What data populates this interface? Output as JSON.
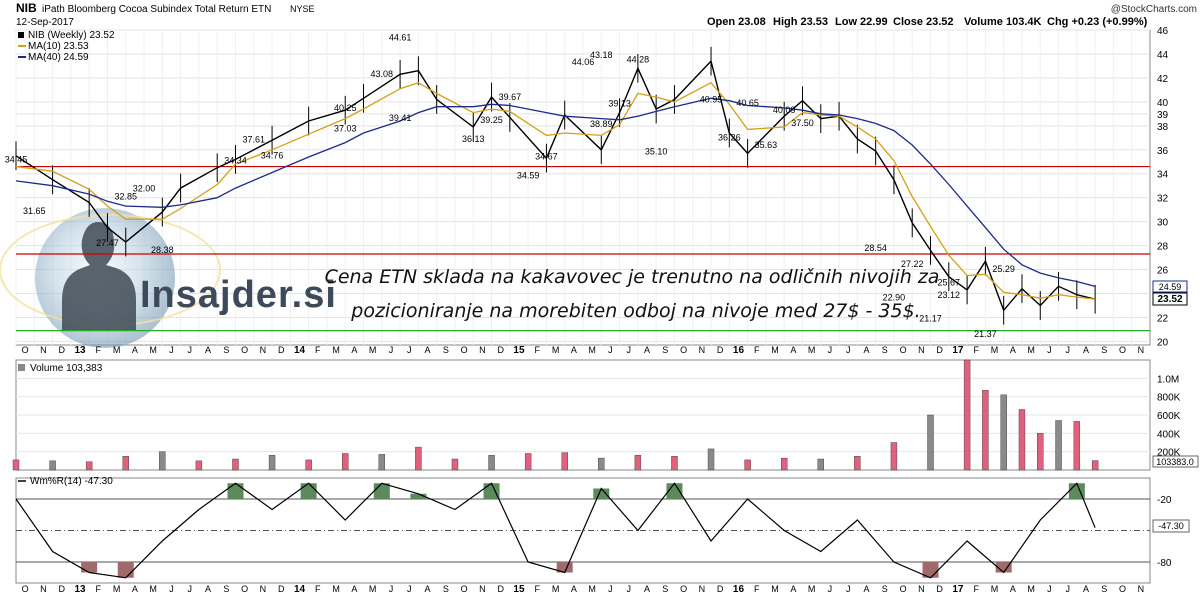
{
  "header": {
    "symbol": "NIB",
    "name": "iPath Bloomberg Cocoa Subindex Total Return ETN",
    "exchange": "NYSE",
    "date": "12-Sep-2017",
    "open": "Open 23.08",
    "high": "High 23.53",
    "low": "Low 22.99",
    "close": "Close 23.52",
    "volume": "Volume 103.4K",
    "change": "Chg +0.23 (+0.99%)",
    "watermark": "@StockCharts.com"
  },
  "logo_text": "Insajder.si",
  "annotation": {
    "line1": "Cena ETN sklada na kakavovec je trenutno na odličnih nivojih za",
    "line2": "pozicioniranje na  morebiten odboj na nivoje med 27$ - 35$."
  },
  "legend": {
    "price": "NIB (Weekly) 23.52",
    "ma10": "MA(10) 23.53",
    "ma40": "MA(40) 24.59",
    "volume": "Volume 103,383",
    "willr": "Wm%R(14) -47.30"
  },
  "price_axis": {
    "ticks": [
      "46",
      "44",
      "42",
      "40",
      "39",
      "38",
      "36",
      "34",
      "32",
      "30",
      "28",
      "26",
      "24",
      "22",
      "20"
    ],
    "ma40_tag": "24.59",
    "close_tag": "23.52"
  },
  "volume_axis": {
    "ticks": [
      "1.0M",
      "800K",
      "600K",
      "400K",
      "200K"
    ],
    "tag": "103383.0"
  },
  "willr_axis": {
    "ticks": [
      "-20",
      "-80"
    ],
    "tag": "-47.30"
  },
  "time_axis": {
    "labels": [
      "O",
      "N",
      "D",
      "13",
      "F",
      "M",
      "A",
      "M",
      "J",
      "J",
      "A",
      "S",
      "O",
      "N",
      "D",
      "14",
      "F",
      "M",
      "A",
      "M",
      "J",
      "J",
      "A",
      "S",
      "O",
      "N",
      "D",
      "15",
      "F",
      "M",
      "A",
      "M",
      "J",
      "J",
      "A",
      "S",
      "O",
      "N",
      "D",
      "16",
      "F",
      "M",
      "A",
      "M",
      "J",
      "J",
      "A",
      "S",
      "O",
      "N",
      "D",
      "17",
      "F",
      "M",
      "A",
      "M",
      "J",
      "J",
      "A",
      "S",
      "O",
      "N"
    ]
  },
  "colors": {
    "ma10": "#d4a017",
    "ma40": "#1c2a8c",
    "resistance_line": "#cc0000",
    "support_line": "#22aa22",
    "volume_up": "#e0607e",
    "volume_down": "#8a8a8a",
    "willr_overbought_fill": "#5d8a5d",
    "willr_oversold_fill": "#a06a6a"
  },
  "chart_data": [
    {
      "type": "line",
      "title": "NIB iPath Bloomberg Cocoa Subindex Total Return ETN NYSE",
      "x": [
        "2012-10",
        "2012-12",
        "2013-02",
        "2013-03",
        "2013-04",
        "2013-06",
        "2013-07",
        "2013-09",
        "2013-10",
        "2013-12",
        "2014-02",
        "2014-04",
        "2014-05",
        "2014-07",
        "2014-08",
        "2014-09",
        "2014-11",
        "2014-12",
        "2015-01",
        "2015-03",
        "2015-04",
        "2015-06",
        "2015-07",
        "2015-08",
        "2015-09",
        "2015-10",
        "2015-12",
        "2016-01",
        "2016-02",
        "2016-04",
        "2016-05",
        "2016-06",
        "2016-07",
        "2016-08",
        "2016-09",
        "2016-10",
        "2016-11",
        "2016-12",
        "2017-01",
        "2017-02",
        "2017-03",
        "2017-04",
        "2017-05",
        "2017-06",
        "2017-07",
        "2017-08",
        "2017-09"
      ],
      "series": [
        {
          "name": "NIB (Weekly)",
          "values": [
            35.5,
            33.5,
            31.6,
            29.5,
            28.3,
            30.8,
            32.8,
            34.5,
            35.2,
            36.8,
            38.4,
            39.3,
            40.3,
            42.3,
            42.6,
            40.2,
            37.9,
            40.4,
            38.7,
            35.3,
            38.9,
            36.0,
            39.1,
            42.8,
            39.4,
            40.2,
            43.4,
            37.4,
            35.7,
            38.8,
            40.1,
            38.6,
            38.8,
            36.9,
            35.9,
            33.5,
            29.9,
            27.6,
            25.4,
            24.3,
            26.7,
            22.6,
            24.4,
            23.0,
            24.6,
            23.9,
            23.52
          ]
        },
        {
          "name": "MA(10)",
          "values": [
            34.6,
            34.2,
            32.7,
            31.3,
            30.2,
            30.2,
            31.1,
            33.1,
            34.8,
            36.0,
            37.3,
            38.6,
            39.4,
            41.1,
            41.6,
            40.7,
            39.1,
            39.4,
            39.2,
            37.2,
            37.4,
            37.2,
            38.1,
            40.7,
            40.4,
            40.0,
            41.6,
            39.8,
            37.7,
            37.9,
            39.1,
            38.9,
            38.8,
            37.9,
            36.9,
            35.1,
            32.1,
            29.6,
            27.2,
            25.5,
            25.6,
            24.1,
            23.9,
            23.6,
            23.9,
            23.7,
            23.53
          ]
        },
        {
          "name": "MA(40)",
          "values": [
            33.4,
            33.0,
            32.3,
            31.7,
            31.3,
            31.2,
            31.4,
            32.0,
            32.8,
            34.1,
            35.4,
            36.6,
            37.4,
            38.4,
            39.1,
            39.6,
            39.6,
            39.8,
            39.7,
            39.1,
            38.8,
            38.6,
            38.5,
            38.8,
            39.2,
            39.6,
            40.3,
            40.1,
            39.7,
            39.5,
            39.3,
            39.0,
            38.9,
            38.6,
            38.2,
            37.6,
            36.4,
            34.8,
            33.1,
            31.3,
            29.5,
            27.7,
            26.4,
            25.7,
            25.3,
            25.0,
            24.59
          ]
        }
      ],
      "xlabel": "",
      "ylabel": "",
      "ylim": [
        19.7,
        46
      ],
      "data_labels": [
        {
          "x": "2012-10",
          "label": "34.45"
        },
        {
          "x": "2012-11",
          "label": "31.65"
        },
        {
          "x": "2013-03",
          "label": "27.47"
        },
        {
          "x": "2013-04",
          "label": "32.85"
        },
        {
          "x": "2013-05",
          "label": "32.00"
        },
        {
          "x": "2013-06",
          "label": "28.38"
        },
        {
          "x": "2013-10",
          "label": "34.34"
        },
        {
          "x": "2013-11",
          "label": "37.61"
        },
        {
          "x": "2013-12",
          "label": "34.76"
        },
        {
          "x": "2014-04",
          "label": "40.25"
        },
        {
          "x": "2014-04",
          "label": "37.03"
        },
        {
          "x": "2014-06",
          "label": "43.08"
        },
        {
          "x": "2014-07",
          "label": "44.61"
        },
        {
          "x": "2014-07",
          "label": "39.41"
        },
        {
          "x": "2014-11",
          "label": "36.13"
        },
        {
          "x": "2014-12",
          "label": "39.25"
        },
        {
          "x": "2015-01",
          "label": "39.67"
        },
        {
          "x": "2015-02",
          "label": "34.59"
        },
        {
          "x": "2015-03",
          "label": "34.67"
        },
        {
          "x": "2015-05",
          "label": "44.06"
        },
        {
          "x": "2015-06",
          "label": "43.18"
        },
        {
          "x": "2015-06",
          "label": "38.89"
        },
        {
          "x": "2015-07",
          "label": "39.13"
        },
        {
          "x": "2015-08",
          "label": "44.28"
        },
        {
          "x": "2015-09",
          "label": "35.10"
        },
        {
          "x": "2015-12",
          "label": "40.95"
        },
        {
          "x": "2016-01",
          "label": "36.26"
        },
        {
          "x": "2016-02",
          "label": "40.65"
        },
        {
          "x": "2016-03",
          "label": "35.63"
        },
        {
          "x": "2016-04",
          "label": "40.09"
        },
        {
          "x": "2016-05",
          "label": "37.50"
        },
        {
          "x": "2016-09",
          "label": "28.54"
        },
        {
          "x": "2016-10",
          "label": "22.90"
        },
        {
          "x": "2016-11",
          "label": "27.22"
        },
        {
          "x": "2016-12",
          "label": "21.17"
        },
        {
          "x": "2017-01",
          "label": "25.67"
        },
        {
          "x": "2017-01",
          "label": "23.12"
        },
        {
          "x": "2017-03",
          "label": "21.37"
        },
        {
          "x": "2017-04",
          "label": "25.29"
        }
      ],
      "horizontal_lines": [
        {
          "value": 34.6,
          "color": "red"
        },
        {
          "value": 27.3,
          "color": "red"
        },
        {
          "value": 20.9,
          "color": "green"
        }
      ],
      "grid": true,
      "legend_position": "top-left"
    },
    {
      "type": "bar",
      "title": "Volume",
      "x": [
        "2012-10",
        "2012-12",
        "2013-02",
        "2013-04",
        "2013-06",
        "2013-08",
        "2013-10",
        "2013-12",
        "2014-02",
        "2014-04",
        "2014-06",
        "2014-08",
        "2014-10",
        "2014-12",
        "2015-02",
        "2015-04",
        "2015-06",
        "2015-08",
        "2015-10",
        "2015-12",
        "2016-02",
        "2016-04",
        "2016-06",
        "2016-08",
        "2016-10",
        "2016-12",
        "2017-02",
        "2017-03",
        "2017-04",
        "2017-05",
        "2017-06",
        "2017-07",
        "2017-08",
        "2017-09"
      ],
      "values": [
        110,
        100,
        90,
        150,
        200,
        100,
        120,
        160,
        110,
        180,
        170,
        250,
        120,
        160,
        180,
        190,
        130,
        160,
        150,
        230,
        110,
        130,
        120,
        150,
        300,
        600,
        1200,
        870,
        820,
        660,
        400,
        540,
        530,
        103
      ],
      "unit": "K",
      "ylabel": "",
      "ylim": [
        0,
        1200
      ],
      "grid": true
    },
    {
      "type": "line",
      "title": "Wm%R(14)",
      "x": [
        "2012-10",
        "2012-12",
        "2013-02",
        "2013-04",
        "2013-06",
        "2013-08",
        "2013-10",
        "2013-12",
        "2014-02",
        "2014-04",
        "2014-06",
        "2014-08",
        "2014-10",
        "2014-12",
        "2015-02",
        "2015-04",
        "2015-06",
        "2015-08",
        "2015-10",
        "2015-12",
        "2016-02",
        "2016-04",
        "2016-06",
        "2016-08",
        "2016-10",
        "2016-12",
        "2017-02",
        "2017-04",
        "2017-06",
        "2017-08",
        "2017-09"
      ],
      "series": [
        {
          "name": "Wm%R(14)",
          "values": [
            -20,
            -70,
            -90,
            -95,
            -60,
            -30,
            -5,
            -30,
            -5,
            -40,
            -5,
            -15,
            -30,
            -5,
            -80,
            -90,
            -10,
            -50,
            -5,
            -60,
            -20,
            -50,
            -70,
            -40,
            -80,
            -95,
            -60,
            -90,
            -40,
            -5,
            -47.3
          ]
        }
      ],
      "ylim": [
        -100,
        0
      ],
      "reference_lines": [
        -20,
        -50,
        -80
      ],
      "grid": true
    }
  ]
}
